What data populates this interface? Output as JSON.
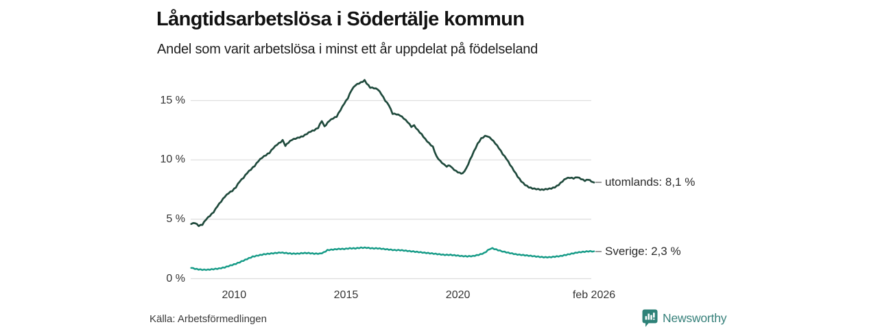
{
  "header": {
    "title": "Långtidsarbetslösa i Södertälje kommun",
    "subtitle": "Andel som varit arbetslösa i minst ett år uppdelat på födelseland"
  },
  "chart_data": {
    "type": "line",
    "title": "Långtidsarbetslösa i Södertälje kommun",
    "subtitle": "Andel som varit arbetslösa i minst ett år uppdelat på födelseland",
    "unit": "percent",
    "grid": true,
    "legend_position": "end-of-line-labels",
    "x_axis": {
      "range": [
        2008.06,
        2026.08
      ],
      "ticks": [
        {
          "value": 2010,
          "label": "2010"
        },
        {
          "value": 2015,
          "label": "2015"
        },
        {
          "value": 2020,
          "label": "2020"
        },
        {
          "value": 2026.08,
          "label": "feb 2026"
        }
      ]
    },
    "y_axis": {
      "range": [
        0,
        17.3
      ],
      "ticks": [
        {
          "value": 0,
          "label": "0 %"
        },
        {
          "value": 5,
          "label": "5 %"
        },
        {
          "value": 10,
          "label": "10 %"
        },
        {
          "value": 15,
          "label": "15 %"
        }
      ]
    },
    "series": [
      {
        "name": "utomlands",
        "end_label": "utomlands: 8,1 %",
        "end_value": 8.1,
        "color": "#1f4a3c",
        "points": [
          [
            2008.08,
            4.6
          ],
          [
            2008.25,
            4.7
          ],
          [
            2008.42,
            4.45
          ],
          [
            2008.58,
            4.55
          ],
          [
            2008.75,
            5.0
          ],
          [
            2008.92,
            5.3
          ],
          [
            2009.08,
            5.6
          ],
          [
            2009.25,
            6.1
          ],
          [
            2009.42,
            6.5
          ],
          [
            2009.58,
            6.9
          ],
          [
            2009.75,
            7.2
          ],
          [
            2009.92,
            7.4
          ],
          [
            2010.08,
            7.7
          ],
          [
            2010.25,
            8.2
          ],
          [
            2010.42,
            8.5
          ],
          [
            2010.58,
            8.9
          ],
          [
            2010.75,
            9.2
          ],
          [
            2010.92,
            9.5
          ],
          [
            2011.08,
            9.9
          ],
          [
            2011.25,
            10.2
          ],
          [
            2011.42,
            10.4
          ],
          [
            2011.58,
            10.6
          ],
          [
            2011.75,
            11.0
          ],
          [
            2011.92,
            11.3
          ],
          [
            2012.08,
            11.5
          ],
          [
            2012.17,
            11.65
          ],
          [
            2012.29,
            11.2
          ],
          [
            2012.42,
            11.45
          ],
          [
            2012.58,
            11.7
          ],
          [
            2012.75,
            11.8
          ],
          [
            2012.92,
            11.9
          ],
          [
            2013.08,
            12.0
          ],
          [
            2013.25,
            12.2
          ],
          [
            2013.42,
            12.4
          ],
          [
            2013.58,
            12.5
          ],
          [
            2013.75,
            12.7
          ],
          [
            2013.92,
            13.3
          ],
          [
            2014.04,
            12.8
          ],
          [
            2014.25,
            13.3
          ],
          [
            2014.42,
            13.5
          ],
          [
            2014.58,
            13.65
          ],
          [
            2014.75,
            14.2
          ],
          [
            2014.92,
            14.75
          ],
          [
            2015.08,
            15.2
          ],
          [
            2015.25,
            15.9
          ],
          [
            2015.42,
            16.3
          ],
          [
            2015.58,
            16.45
          ],
          [
            2015.75,
            16.6
          ],
          [
            2015.83,
            16.7
          ],
          [
            2015.92,
            16.45
          ],
          [
            2016.08,
            16.1
          ],
          [
            2016.25,
            16.05
          ],
          [
            2016.42,
            15.95
          ],
          [
            2016.58,
            15.55
          ],
          [
            2016.75,
            15.0
          ],
          [
            2016.92,
            14.6
          ],
          [
            2017.08,
            13.9
          ],
          [
            2017.25,
            13.85
          ],
          [
            2017.42,
            13.75
          ],
          [
            2017.58,
            13.5
          ],
          [
            2017.75,
            13.2
          ],
          [
            2017.92,
            12.8
          ],
          [
            2018.04,
            12.9
          ],
          [
            2018.21,
            12.5
          ],
          [
            2018.38,
            12.15
          ],
          [
            2018.54,
            11.75
          ],
          [
            2018.71,
            11.4
          ],
          [
            2018.88,
            11.1
          ],
          [
            2019.04,
            10.3
          ],
          [
            2019.21,
            9.9
          ],
          [
            2019.38,
            9.6
          ],
          [
            2019.5,
            9.45
          ],
          [
            2019.63,
            9.55
          ],
          [
            2019.75,
            9.3
          ],
          [
            2019.92,
            9.05
          ],
          [
            2020.08,
            8.9
          ],
          [
            2020.21,
            8.85
          ],
          [
            2020.38,
            9.3
          ],
          [
            2020.54,
            10.0
          ],
          [
            2020.71,
            10.7
          ],
          [
            2020.88,
            11.35
          ],
          [
            2021.04,
            11.8
          ],
          [
            2021.21,
            12.0
          ],
          [
            2021.33,
            12.0
          ],
          [
            2021.5,
            11.75
          ],
          [
            2021.67,
            11.4
          ],
          [
            2021.83,
            11.0
          ],
          [
            2022.0,
            10.5
          ],
          [
            2022.17,
            10.1
          ],
          [
            2022.33,
            9.6
          ],
          [
            2022.5,
            9.1
          ],
          [
            2022.67,
            8.6
          ],
          [
            2022.83,
            8.2
          ],
          [
            2023.0,
            7.9
          ],
          [
            2023.17,
            7.7
          ],
          [
            2023.33,
            7.6
          ],
          [
            2023.5,
            7.55
          ],
          [
            2023.67,
            7.5
          ],
          [
            2023.83,
            7.5
          ],
          [
            2024.0,
            7.55
          ],
          [
            2024.17,
            7.6
          ],
          [
            2024.33,
            7.7
          ],
          [
            2024.5,
            7.9
          ],
          [
            2024.67,
            8.2
          ],
          [
            2024.83,
            8.45
          ],
          [
            2025.0,
            8.5
          ],
          [
            2025.17,
            8.45
          ],
          [
            2025.33,
            8.55
          ],
          [
            2025.5,
            8.4
          ],
          [
            2025.67,
            8.25
          ],
          [
            2025.83,
            8.35
          ],
          [
            2025.96,
            8.2
          ],
          [
            2026.08,
            8.1
          ]
        ]
      },
      {
        "name": "Sverige",
        "end_label": "Sverige: 2,3 %",
        "end_value": 2.3,
        "color": "#169b87",
        "points": [
          [
            2008.08,
            0.9
          ],
          [
            2008.33,
            0.8
          ],
          [
            2008.58,
            0.75
          ],
          [
            2008.83,
            0.75
          ],
          [
            2009.08,
            0.8
          ],
          [
            2009.33,
            0.85
          ],
          [
            2009.58,
            0.95
          ],
          [
            2009.83,
            1.1
          ],
          [
            2010.08,
            1.25
          ],
          [
            2010.33,
            1.45
          ],
          [
            2010.58,
            1.65
          ],
          [
            2010.83,
            1.85
          ],
          [
            2011.08,
            1.95
          ],
          [
            2011.33,
            2.05
          ],
          [
            2011.58,
            2.1
          ],
          [
            2011.83,
            2.15
          ],
          [
            2012.08,
            2.2
          ],
          [
            2012.33,
            2.15
          ],
          [
            2012.58,
            2.1
          ],
          [
            2012.83,
            2.1
          ],
          [
            2013.08,
            2.15
          ],
          [
            2013.33,
            2.15
          ],
          [
            2013.58,
            2.1
          ],
          [
            2013.83,
            2.1
          ],
          [
            2014.0,
            2.2
          ],
          [
            2014.17,
            2.4
          ],
          [
            2014.42,
            2.45
          ],
          [
            2014.67,
            2.5
          ],
          [
            2014.92,
            2.5
          ],
          [
            2015.17,
            2.55
          ],
          [
            2015.42,
            2.55
          ],
          [
            2015.67,
            2.6
          ],
          [
            2015.92,
            2.6
          ],
          [
            2016.17,
            2.55
          ],
          [
            2016.42,
            2.55
          ],
          [
            2016.67,
            2.5
          ],
          [
            2016.92,
            2.45
          ],
          [
            2017.17,
            2.4
          ],
          [
            2017.42,
            2.4
          ],
          [
            2017.67,
            2.35
          ],
          [
            2017.92,
            2.3
          ],
          [
            2018.17,
            2.25
          ],
          [
            2018.42,
            2.2
          ],
          [
            2018.67,
            2.15
          ],
          [
            2018.92,
            2.1
          ],
          [
            2019.17,
            2.05
          ],
          [
            2019.42,
            2.0
          ],
          [
            2019.67,
            2.0
          ],
          [
            2019.92,
            1.95
          ],
          [
            2020.17,
            1.9
          ],
          [
            2020.42,
            1.88
          ],
          [
            2020.67,
            1.9
          ],
          [
            2020.92,
            2.0
          ],
          [
            2021.17,
            2.15
          ],
          [
            2021.42,
            2.5
          ],
          [
            2021.54,
            2.55
          ],
          [
            2021.71,
            2.45
          ],
          [
            2021.88,
            2.35
          ],
          [
            2022.08,
            2.25
          ],
          [
            2022.33,
            2.15
          ],
          [
            2022.58,
            2.05
          ],
          [
            2022.83,
            2.0
          ],
          [
            2023.08,
            1.95
          ],
          [
            2023.33,
            1.9
          ],
          [
            2023.58,
            1.85
          ],
          [
            2023.83,
            1.8
          ],
          [
            2024.08,
            1.8
          ],
          [
            2024.33,
            1.85
          ],
          [
            2024.58,
            1.9
          ],
          [
            2024.83,
            2.0
          ],
          [
            2025.08,
            2.1
          ],
          [
            2025.33,
            2.2
          ],
          [
            2025.58,
            2.25
          ],
          [
            2025.83,
            2.3
          ],
          [
            2026.08,
            2.3
          ]
        ]
      }
    ]
  },
  "footer": {
    "source": "Källa: Arbetsförmedlingen",
    "brand": "Newsworthy"
  },
  "colors": {
    "grid": "#dcdcdc",
    "axis_text": "#333333",
    "label_text": "#2a2a2a",
    "connector": "#9b9b9b",
    "brand_teal": "#2e8278",
    "line_utomlands": "#1f4a3c",
    "line_sverige": "#169b87"
  }
}
